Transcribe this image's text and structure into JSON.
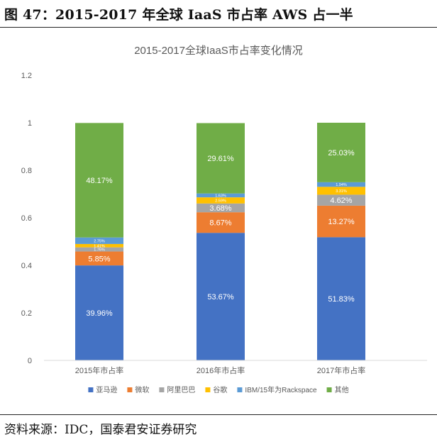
{
  "figure": {
    "title": "图 47：2015-2017 年全球 IaaS 市占率 AWS 占一半",
    "source_label": "资料来源：",
    "source_value": "IDC，国泰君安证券研究"
  },
  "chart_data": {
    "type": "bar",
    "stacked": true,
    "title": "2015-2017全球IaaS市占率变化情况",
    "xlabel": "",
    "ylabel": "",
    "ylim": [
      0,
      1.2
    ],
    "yticks": [
      0,
      0.2,
      0.4,
      0.6,
      0.8,
      1,
      1.2
    ],
    "ytick_labels": [
      "0",
      "0.2",
      "0.4",
      "0.6",
      "0.8",
      "1",
      "1.2"
    ],
    "grid": false,
    "legend_position": "bottom",
    "categories": [
      "2015年市占率",
      "2016年市占率",
      "2017年市占率"
    ],
    "series": [
      {
        "name": "亚马逊",
        "color": "#4472C4",
        "values": [
          0.3996,
          0.5367,
          0.5183
        ],
        "labels": [
          "39.96%",
          "53.67%",
          "51.83%"
        ]
      },
      {
        "name": "微软",
        "color": "#ED7D31",
        "values": [
          0.0585,
          0.0867,
          0.1327
        ],
        "labels": [
          "5.85%",
          "8.67%",
          "13.27%"
        ]
      },
      {
        "name": "阿里巴巴",
        "color": "#A5A5A5",
        "values": [
          0.0176,
          0.0368,
          0.0462
        ],
        "labels": [
          "1.76%",
          "3.68%",
          "4.62%"
        ]
      },
      {
        "name": "谷歌",
        "color": "#FFC000",
        "values": [
          0.0141,
          0.0259,
          0.0331
        ],
        "labels": [
          "1.41%",
          "2.59%",
          "3.31%"
        ]
      },
      {
        "name": "IBM/15年为Rackspace",
        "color": "#5B9BD5",
        "values": [
          0.0275,
          0.0163,
          0.0194
        ],
        "labels": [
          "2.75%",
          "1.63%",
          "1.94%"
        ]
      },
      {
        "name": "其他",
        "color": "#70AD47",
        "values": [
          0.4817,
          0.2961,
          0.2503
        ],
        "labels": [
          "48.17%",
          "29.61%",
          "25.03%"
        ]
      }
    ]
  }
}
